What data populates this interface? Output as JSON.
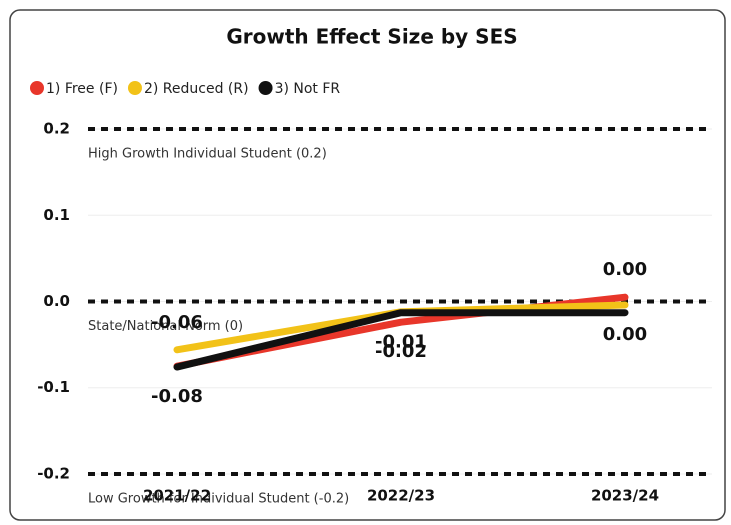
{
  "chart_data": {
    "type": "line",
    "title": "Growth Effect Size by SES",
    "categories": [
      "2021/22",
      "2022/23",
      "2023/24"
    ],
    "series": [
      {
        "name": "1) Free (F)",
        "color": "#e8362a",
        "values": [
          -0.075,
          -0.024,
          0.005
        ],
        "value_labels": [
          null,
          "-0.02",
          "0.00"
        ]
      },
      {
        "name": "2) Reduced (R)",
        "color": "#f2c218",
        "values": [
          -0.056,
          -0.012,
          -0.004
        ],
        "value_labels": [
          "-0.06",
          null,
          "0.00"
        ]
      },
      {
        "name": "3) Not FR",
        "color": "#111111",
        "values": [
          -0.076,
          -0.013,
          -0.013
        ],
        "value_labels": [
          "-0.08",
          "-0.01",
          null
        ]
      }
    ],
    "ylim": [
      -0.21,
      0.21
    ],
    "yticks": [
      -0.2,
      -0.1,
      {
        "value": 0,
        "label": "0.0"
      },
      0.1,
      0.2
    ],
    "grid": true,
    "legend": "top-left",
    "reference_lines": [
      {
        "value": 0.2,
        "label": "High Growth Individual Student (0.2)"
      },
      {
        "value": 0,
        "label": "State/National Norm (0)"
      },
      {
        "value": -0.2,
        "label": "Low Growth for Individual Student (-0.2)"
      }
    ]
  }
}
